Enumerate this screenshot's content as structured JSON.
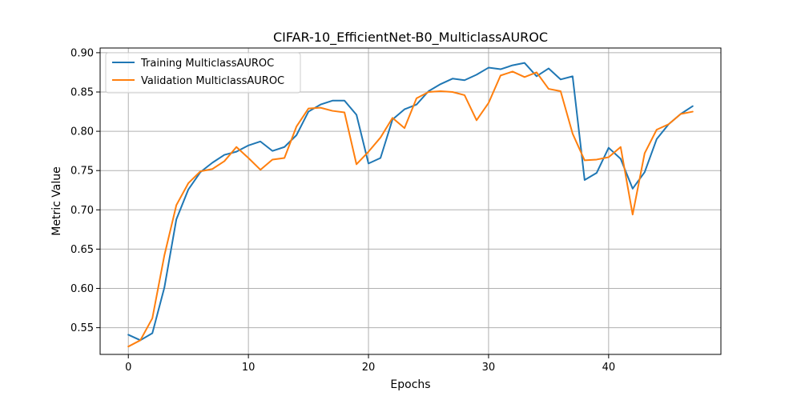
{
  "chart_data": {
    "type": "line",
    "title": "CIFAR-10_EfficientNet-B0_MulticlassAUROC",
    "xlabel": "Epochs",
    "ylabel": "Metric Value",
    "xlim": [
      -2.35,
      49.35
    ],
    "ylim": [
      0.516,
      0.906
    ],
    "xticks": [
      0,
      10,
      20,
      30,
      40
    ],
    "yticks": [
      0.55,
      0.6,
      0.65,
      0.7,
      0.75,
      0.8,
      0.85,
      0.9
    ],
    "grid": true,
    "legend_position": "top-left",
    "x": [
      0,
      1,
      2,
      3,
      4,
      5,
      6,
      7,
      8,
      9,
      10,
      11,
      12,
      13,
      14,
      15,
      16,
      17,
      18,
      19,
      20,
      21,
      22,
      23,
      24,
      25,
      26,
      27,
      28,
      29,
      30,
      31,
      32,
      33,
      34,
      35,
      36,
      37,
      38,
      39,
      40,
      41,
      42,
      43,
      44,
      45,
      46,
      47
    ],
    "series": [
      {
        "name": "Training MulticlassAUROC",
        "color": "#1f77b4",
        "values": [
          0.541,
          0.534,
          0.543,
          0.601,
          0.688,
          0.726,
          0.748,
          0.76,
          0.77,
          0.774,
          0.782,
          0.787,
          0.775,
          0.78,
          0.795,
          0.825,
          0.834,
          0.839,
          0.839,
          0.821,
          0.759,
          0.766,
          0.815,
          0.828,
          0.834,
          0.851,
          0.86,
          0.867,
          0.865,
          0.872,
          0.881,
          0.879,
          0.884,
          0.887,
          0.87,
          0.88,
          0.866,
          0.87,
          0.738,
          0.747,
          0.779,
          0.765,
          0.727,
          0.748,
          0.79,
          0.809,
          0.822,
          0.832
        ]
      },
      {
        "name": "Validation MulticlassAUROC",
        "color": "#ff7f0e",
        "values": [
          0.526,
          0.534,
          0.562,
          0.642,
          0.706,
          0.734,
          0.749,
          0.752,
          0.762,
          0.78,
          0.766,
          0.751,
          0.764,
          0.766,
          0.806,
          0.829,
          0.83,
          0.826,
          0.824,
          0.758,
          0.774,
          0.792,
          0.817,
          0.804,
          0.842,
          0.85,
          0.851,
          0.85,
          0.846,
          0.814,
          0.836,
          0.871,
          0.876,
          0.869,
          0.875,
          0.854,
          0.851,
          0.797,
          0.763,
          0.764,
          0.767,
          0.78,
          0.694,
          0.772,
          0.802,
          0.809,
          0.822,
          0.825
        ]
      }
    ]
  }
}
